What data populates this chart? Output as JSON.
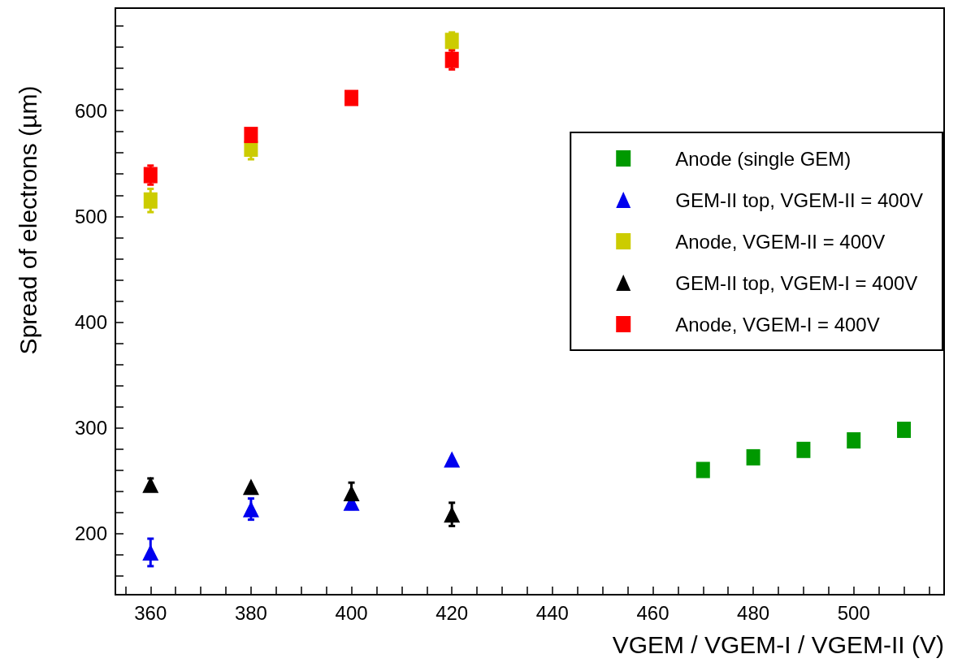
{
  "chart_data": {
    "type": "scatter",
    "xlabel": "VGEM / VGEM-I / VGEM-II (V)",
    "ylabel": "Spread of electrons (µm)",
    "xlim": [
      353,
      518
    ],
    "ylim": [
      142,
      697
    ],
    "xticks": [
      {
        "value": 355,
        "label": null
      },
      360,
      {
        "value": 365,
        "label": null
      },
      {
        "value": 370,
        "label": null
      },
      {
        "value": 375,
        "label": null
      },
      380,
      {
        "value": 385,
        "label": null
      },
      {
        "value": 390,
        "label": null
      },
      {
        "value": 395,
        "label": null
      },
      400,
      {
        "value": 405,
        "label": null
      },
      {
        "value": 410,
        "label": null
      },
      {
        "value": 415,
        "label": null
      },
      420,
      {
        "value": 425,
        "label": null
      },
      {
        "value": 430,
        "label": null
      },
      {
        "value": 435,
        "label": null
      },
      440,
      {
        "value": 445,
        "label": null
      },
      {
        "value": 450,
        "label": null
      },
      {
        "value": 455,
        "label": null
      },
      460,
      {
        "value": 465,
        "label": null
      },
      {
        "value": 470,
        "label": null
      },
      {
        "value": 475,
        "label": null
      },
      480,
      {
        "value": 485,
        "label": null
      },
      {
        "value": 490,
        "label": null
      },
      {
        "value": 495,
        "label": null
      },
      500,
      {
        "value": 505,
        "label": null
      },
      {
        "value": 510,
        "label": null
      },
      {
        "value": 515,
        "label": null
      }
    ],
    "yticks": [
      {
        "value": 160,
        "label": null
      },
      {
        "value": 180,
        "label": null
      },
      200,
      {
        "value": 220,
        "label": null
      },
      {
        "value": 240,
        "label": null
      },
      {
        "value": 260,
        "label": null
      },
      {
        "value": 280,
        "label": null
      },
      300,
      {
        "value": 320,
        "label": null
      },
      {
        "value": 340,
        "label": null
      },
      {
        "value": 360,
        "label": null
      },
      {
        "value": 380,
        "label": null
      },
      400,
      {
        "value": 420,
        "label": null
      },
      {
        "value": 440,
        "label": null
      },
      {
        "value": 460,
        "label": null
      },
      {
        "value": 480,
        "label": null
      },
      500,
      {
        "value": 520,
        "label": null
      },
      {
        "value": 540,
        "label": null
      },
      {
        "value": 560,
        "label": null
      },
      {
        "value": 580,
        "label": null
      },
      600,
      {
        "value": 620,
        "label": null
      },
      {
        "value": 640,
        "label": null
      },
      {
        "value": 660,
        "label": null
      },
      {
        "value": 680,
        "label": null
      }
    ],
    "grid": false,
    "legend": "top right",
    "series": [
      {
        "name": "Anode (single GEM)",
        "color": "#009900",
        "marker": "square",
        "x": [
          470,
          480,
          490,
          500,
          510
        ],
        "values": [
          260,
          272,
          279,
          288,
          298
        ]
      },
      {
        "name": "GEM-II top, VGEM-II = 400V",
        "color": "#0000ee",
        "marker": "triangle",
        "x": [
          360,
          380,
          400,
          420
        ],
        "values": [
          182,
          223,
          229,
          270
        ],
        "errors": [
          13,
          10,
          6,
          null
        ]
      },
      {
        "name": "Anode, VGEM-II = 400V",
        "color": "#cccc00",
        "marker": "square",
        "x": [
          360,
          380,
          420
        ],
        "values": [
          515,
          564,
          666
        ],
        "errors": [
          11,
          10,
          8
        ]
      },
      {
        "name": "GEM-II top, VGEM-I = 400V",
        "color": "#000000",
        "marker": "triangle",
        "x": [
          360,
          380,
          400,
          420
        ],
        "values": [
          246,
          244,
          238,
          218
        ],
        "errors": [
          6,
          null,
          10,
          11
        ]
      },
      {
        "name": "Anode, VGEM-I = 400V",
        "color": "#ff0000",
        "marker": "square",
        "x": [
          360,
          380,
          400,
          420
        ],
        "values": [
          539,
          577,
          612,
          648
        ],
        "errors": [
          9,
          null,
          null,
          9
        ]
      }
    ]
  }
}
